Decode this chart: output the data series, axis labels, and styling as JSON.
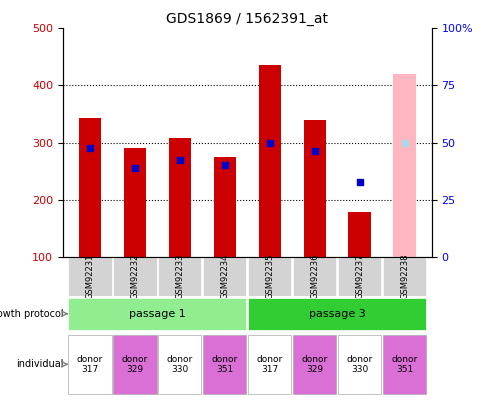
{
  "title": "GDS1869 / 1562391_at",
  "samples": [
    "GSM92231",
    "GSM92232",
    "GSM92233",
    "GSM92234",
    "GSM92235",
    "GSM92236",
    "GSM92237",
    "GSM92238"
  ],
  "count_values": [
    343,
    291,
    308,
    274,
    435,
    340,
    178,
    null
  ],
  "absent_value_bar": [
    null,
    null,
    null,
    null,
    null,
    null,
    null,
    420
  ],
  "percentile_rank": [
    290,
    256,
    270,
    260,
    300,
    285,
    230,
    300
  ],
  "absent_rank": [
    null,
    null,
    null,
    null,
    null,
    null,
    null,
    300
  ],
  "bar_bottom": 100,
  "ylim": [
    100,
    500
  ],
  "yticks_left": [
    100,
    200,
    300,
    400,
    500
  ],
  "yticks_right": [
    0,
    25,
    50,
    75,
    100
  ],
  "growth_protocol": [
    "passage 1",
    "passage 1",
    "passage 1",
    "passage 1",
    "passage 3",
    "passage 3",
    "passage 3",
    "passage 3"
  ],
  "passage1_color": "#90EE90",
  "passage3_color": "#32CD32",
  "individual_labels": [
    "donor\n317",
    "donor\n329",
    "donor\n330",
    "donor\n351",
    "donor\n317",
    "donor\n329",
    "donor\n330",
    "donor\n351"
  ],
  "individual_colors": [
    "#ffffff",
    "#DA70D6",
    "#ffffff",
    "#DA70D6",
    "#ffffff",
    "#DA70D6",
    "#ffffff",
    "#DA70D6"
  ],
  "bar_color_red": "#CC0000",
  "bar_color_pink": "#FFB6C1",
  "dot_color_blue": "#0000CC",
  "dot_color_lightblue": "#ADD8E6",
  "bar_width": 0.5,
  "grid_color": "#000000",
  "absent_detection": [
    false,
    false,
    false,
    false,
    false,
    false,
    false,
    true
  ],
  "label_fontsize": 8,
  "tick_label_fontsize": 8
}
